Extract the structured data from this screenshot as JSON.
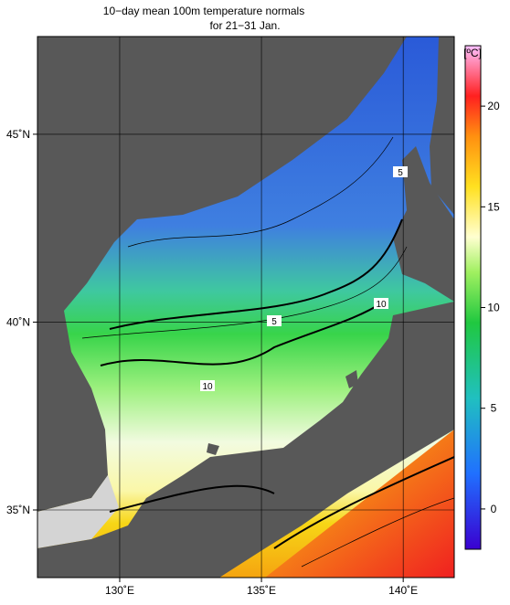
{
  "title": [
    "10−day mean 100m temperature normals",
    "for 21−31 Jan."
  ],
  "map": {
    "xlim": [
      127.1,
      141.8
    ],
    "ylim": [
      33.2,
      47.6
    ],
    "xticks": [
      {
        "value": 130,
        "label": "130˚E"
      },
      {
        "value": 135,
        "label": "135˚E"
      },
      {
        "value": 140,
        "label": "140˚E"
      }
    ],
    "yticks": [
      {
        "value": 45,
        "label": "45˚N"
      },
      {
        "value": 40,
        "label": "40˚N"
      },
      {
        "value": 35,
        "label": "35˚N"
      }
    ],
    "grid": true,
    "contour_labels": [
      5,
      10,
      5,
      10
    ]
  },
  "colorbar": {
    "unit": "[ºC]",
    "range": [
      -2,
      23
    ],
    "ticks": [
      0,
      5,
      10,
      15,
      20
    ]
  }
}
